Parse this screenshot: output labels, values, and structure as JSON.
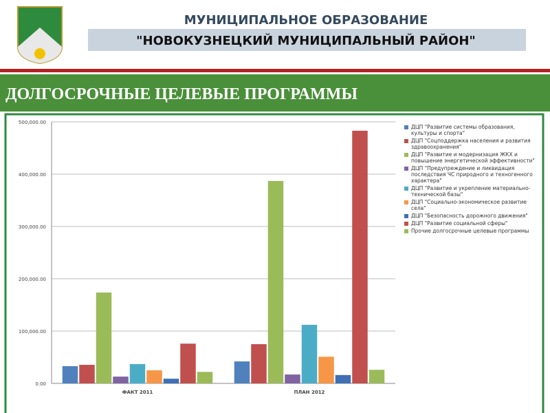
{
  "header": {
    "title_line1": "МУНИЦИПАЛЬНОЕ ОБРАЗОВАНИЕ",
    "title_line2": "\"НОВОКУЗНЕЦКИЙ МУНИЦИПАЛЬНЫЙ РАЙОН\""
  },
  "banner": "ДОЛГОСРОЧНЫЕ ЦЕЛЕВЫЕ ПРОГРАММЫ",
  "chart_data": {
    "type": "bar",
    "categories": [
      "ФАКТ 2011",
      "ПЛАН 2012"
    ],
    "ylim": [
      0,
      500000
    ],
    "yticks": [
      {
        "value": 0,
        "label": "0.00"
      },
      {
        "value": 100000,
        "label": "100,000.00"
      },
      {
        "value": 200000,
        "label": "200,000.00"
      },
      {
        "value": 300000,
        "label": "300,000.00"
      },
      {
        "value": 400000,
        "label": "400,000.00"
      },
      {
        "value": 500000,
        "label": "500,000.00"
      }
    ],
    "grid": true,
    "legend": "right",
    "series": [
      {
        "name": "ДЦП \"Развитие системы образования, культуры и спорта\"",
        "color": "#4f81bd",
        "values": [
          33000,
          42000
        ]
      },
      {
        "name": "ДЦП \"Соцподдержка населения и развития здравоохранения\"",
        "color": "#c0504d",
        "values": [
          35500,
          75000
        ]
      },
      {
        "name": "ДЦП \"Развитие и модернизация ЖКХ и повышение энергетической эффективности\"",
        "color": "#9bbb59",
        "values": [
          173700,
          387000
        ]
      },
      {
        "name": "ДЦП \"Предупреждение и ликвидация последствия ЧС природного и техногенного характера\"",
        "color": "#8064a2",
        "values": [
          13000,
          17000
        ]
      },
      {
        "name": "ДЦП \"Развитие и укрепление материально-технической базы\"",
        "color": "#4bacc6",
        "values": [
          37000,
          112000
        ]
      },
      {
        "name": "ДЦП \"Социально-экономическое развитие села\"",
        "color": "#f79646",
        "values": [
          25000,
          51000
        ]
      },
      {
        "name": "ДЦП \"Безопасность дорожного движения\"",
        "color": "#3f70b5",
        "values": [
          9000,
          16000
        ]
      },
      {
        "name": "ДЦП \"Развитие социальной сферы\"",
        "color": "#c0504d",
        "values": [
          76000,
          483000
        ]
      },
      {
        "name": "Прочие долгосрочные целевые программы",
        "color": "#9bbb59",
        "values": [
          22000,
          26000
        ]
      }
    ]
  }
}
